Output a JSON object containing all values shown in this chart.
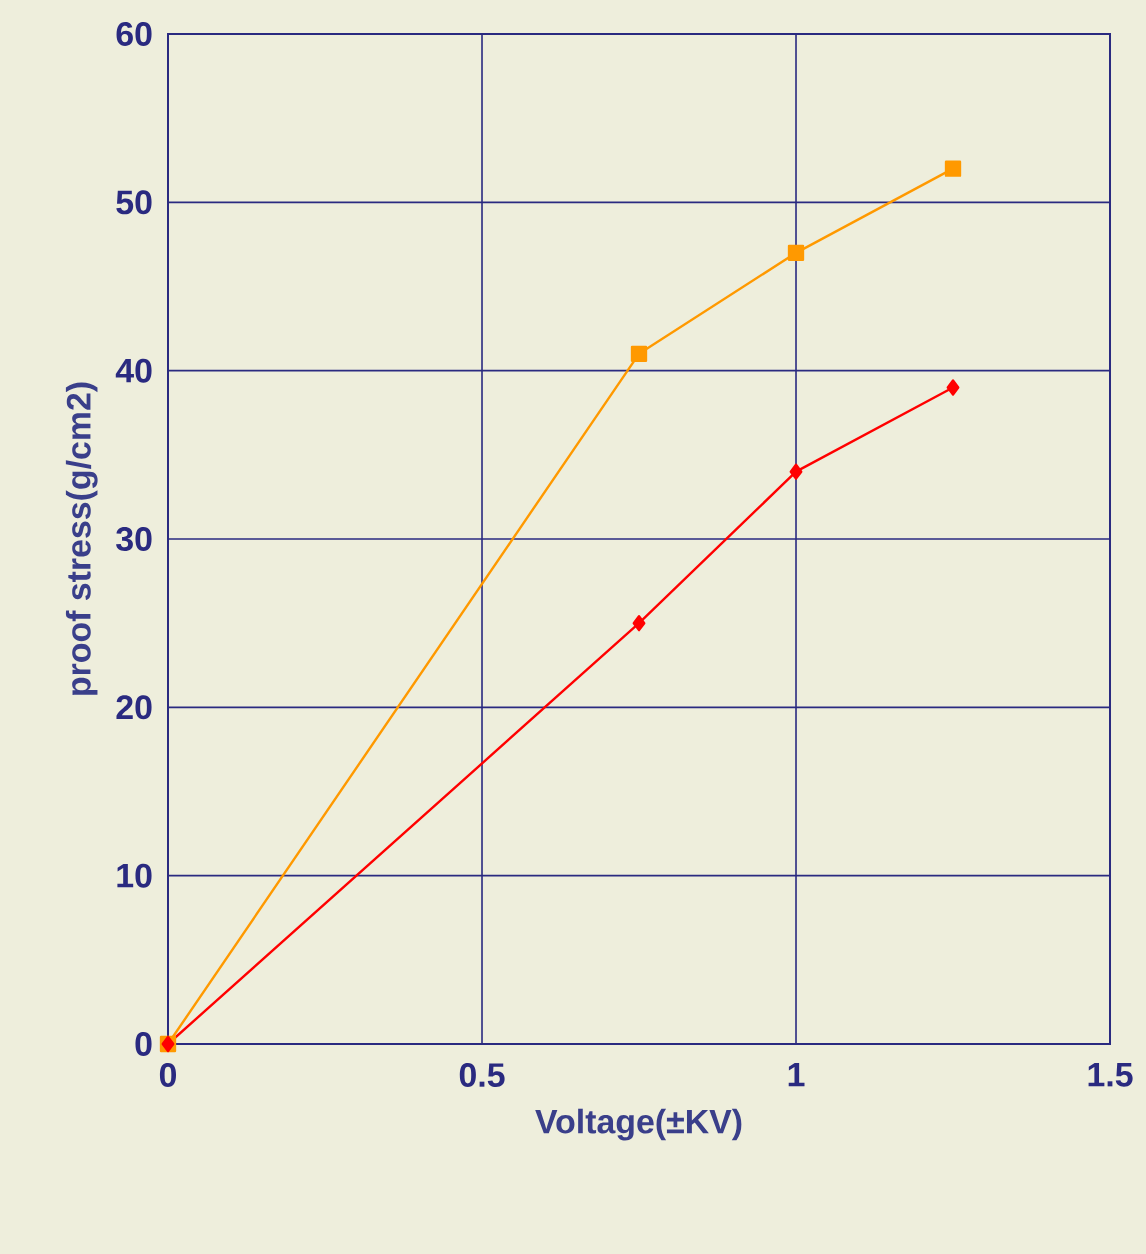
{
  "chart_data": {
    "type": "line",
    "xlabel": "Voltage(±KV)",
    "ylabel": "proof stress(g/cm2)",
    "xlim": [
      0,
      1.5
    ],
    "ylim": [
      0,
      60
    ],
    "xticks": [
      0,
      0.5,
      1,
      1.5
    ],
    "yticks": [
      0,
      10,
      20,
      30,
      40,
      50,
      60
    ],
    "grid": true,
    "series": [
      {
        "color": "#ff9900",
        "x": [
          0,
          0.75,
          1,
          1.25
        ],
        "values": [
          0,
          41,
          47,
          52
        ],
        "marker": "square"
      },
      {
        "color": "#ff0000",
        "x": [
          0,
          0.75,
          1,
          1.25
        ],
        "values": [
          0,
          25,
          34,
          39
        ],
        "marker": "diamond"
      }
    ]
  }
}
